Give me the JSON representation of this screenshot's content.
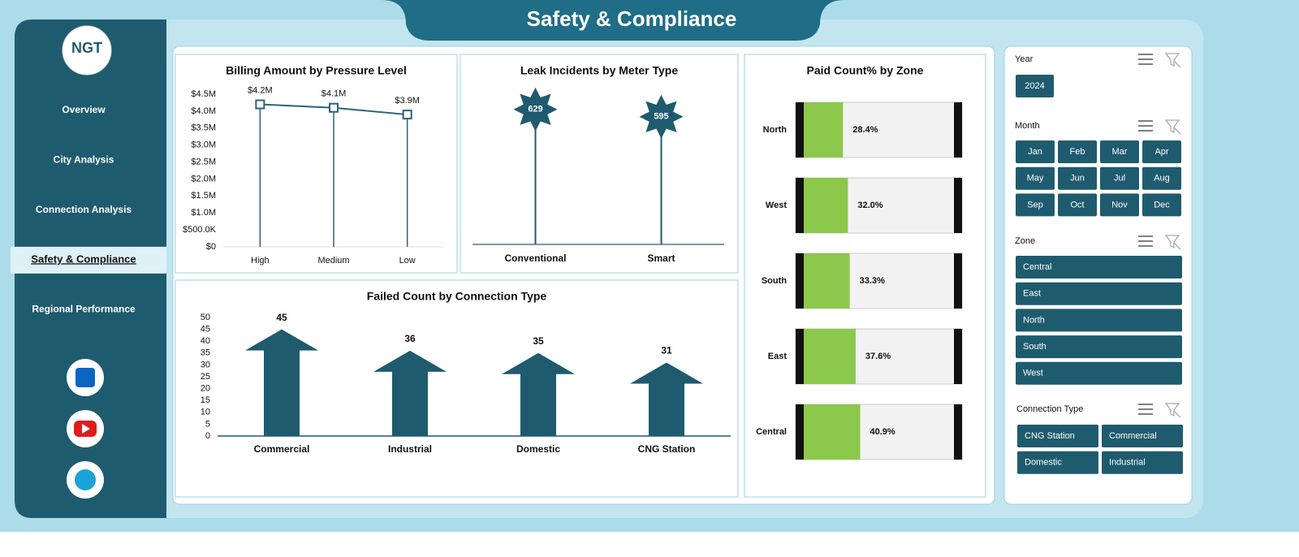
{
  "header": {
    "title": "Safety & Compliance",
    "logo": "NGT"
  },
  "nav": {
    "items": [
      "Overview",
      "City Analysis",
      "Connection Analysis",
      "Safety & Compliance",
      "Regional Performance"
    ],
    "active": 3
  },
  "chart_data": [
    {
      "type": "line",
      "title": "Billing Amount by Pressure Level",
      "categories": [
        "High",
        "Medium",
        "Low"
      ],
      "values": [
        4200000,
        4100000,
        3900000
      ],
      "value_labels": [
        "$4.2M",
        "$4.1M",
        "$3.9M"
      ],
      "color": "#2a6478",
      "ylim": [
        0,
        4500000
      ],
      "yticks": [
        {
          "value": 0,
          "label": "$0"
        },
        {
          "value": 500000,
          "label": "$500.0K"
        },
        {
          "value": 1000000,
          "label": "$1.0M"
        },
        {
          "value": 1500000,
          "label": "$1.5M"
        },
        {
          "value": 2000000,
          "label": "$2.0M"
        },
        {
          "value": 2500000,
          "label": "$2.5M"
        },
        {
          "value": 3000000,
          "label": "$3.0M"
        },
        {
          "value": 3500000,
          "label": "$3.5M"
        },
        {
          "value": 4000000,
          "label": "$4.0M"
        },
        {
          "value": 4500000,
          "label": "$4.5M"
        }
      ]
    },
    {
      "type": "lollipop",
      "title": "Leak Incidents by Meter Type",
      "categories": [
        "Conventional",
        "Smart"
      ],
      "values": [
        629,
        595
      ],
      "color": "#1f5b6e",
      "ylim": [
        0,
        700
      ]
    },
    {
      "type": "bar",
      "title": "Failed Count by Connection Type",
      "categories": [
        "Commercial",
        "Industrial",
        "Domestic",
        "CNG Station"
      ],
      "values": [
        45,
        36,
        35,
        31
      ],
      "color": "#1f5b6e",
      "ylim": [
        0,
        50
      ],
      "yticks": [
        0,
        5,
        10,
        15,
        20,
        25,
        30,
        35,
        40,
        45,
        50
      ]
    },
    {
      "type": "bar",
      "orientation": "horizontal",
      "title": "Paid Count% by Zone",
      "categories": [
        "North",
        "West",
        "South",
        "East",
        "Central"
      ],
      "values": [
        28.4,
        32.0,
        33.3,
        37.6,
        40.9
      ],
      "value_labels": [
        "28.4%",
        "32.0%",
        "33.3%",
        "37.6%",
        "40.9%"
      ],
      "color": "#8cc84b",
      "xlim": [
        0,
        100
      ]
    }
  ],
  "slicers": [
    {
      "title": "Year",
      "items": [
        "2024"
      ]
    },
    {
      "title": "Month",
      "items": [
        "Jan",
        "Feb",
        "Mar",
        "Apr",
        "May",
        "Jun",
        "Jul",
        "Aug",
        "Sep",
        "Oct",
        "Nov",
        "Dec"
      ]
    },
    {
      "title": "Zone",
      "items": [
        "Central",
        "East",
        "North",
        "South",
        "West"
      ]
    },
    {
      "title": "Connection Type",
      "items": [
        "CNG Station",
        "Commercial",
        "Domestic",
        "Industrial"
      ]
    }
  ]
}
